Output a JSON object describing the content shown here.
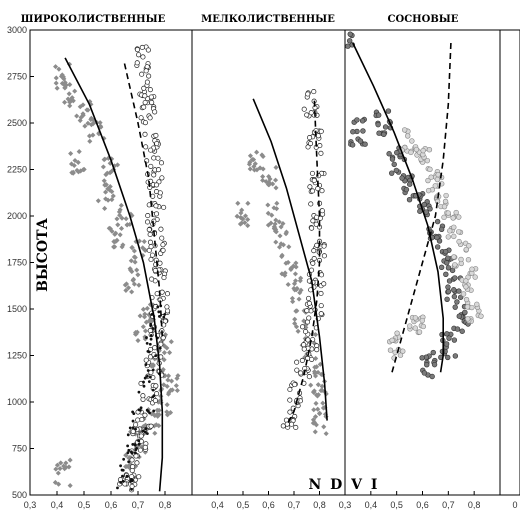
{
  "chart_data": {
    "type": "scatter",
    "ylabel": "ВЫСОТА",
    "xlabel": "N D V I",
    "ylim": [
      500,
      3000
    ],
    "yticks": [
      "500",
      "750",
      "1000",
      "1250",
      "1500",
      "1750",
      "2000",
      "2250",
      "2500",
      "2750",
      "3000"
    ],
    "grid": false,
    "panels": [
      {
        "title": "ШИРОКОЛИСТВЕННЫЕ",
        "xlim": [
          0.3,
          0.9
        ],
        "xticks": [
          "0,3",
          "0,4",
          "0,5",
          "0,6",
          "0,7",
          "0,8"
        ],
        "series": [
          {
            "marker": "filled-gray-diamond",
            "points": [
              [
                0.42,
                2750
              ],
              [
                0.45,
                2650
              ],
              [
                0.5,
                2550
              ],
              [
                0.55,
                2450
              ],
              [
                0.48,
                2300
              ],
              [
                0.6,
                2250
              ],
              [
                0.58,
                2100
              ],
              [
                0.65,
                2000
              ],
              [
                0.62,
                1900
              ],
              [
                0.7,
                1800
              ],
              [
                0.68,
                1650
              ],
              [
                0.75,
                1500
              ],
              [
                0.72,
                1400
              ],
              [
                0.8,
                1300
              ],
              [
                0.78,
                1200
              ],
              [
                0.82,
                1100
              ],
              [
                0.8,
                1000
              ],
              [
                0.75,
                900
              ],
              [
                0.7,
                800
              ],
              [
                0.68,
                700
              ],
              [
                0.42,
                620
              ]
            ]
          },
          {
            "marker": "open-circle",
            "points": [
              [
                0.72,
                2850
              ],
              [
                0.73,
                2700
              ],
              [
                0.74,
                2550
              ],
              [
                0.75,
                2400
              ],
              [
                0.76,
                2250
              ],
              [
                0.77,
                2100
              ],
              [
                0.76,
                1950
              ],
              [
                0.77,
                1800
              ],
              [
                0.78,
                1650
              ],
              [
                0.78,
                1500
              ],
              [
                0.77,
                1350
              ],
              [
                0.76,
                1200
              ],
              [
                0.74,
                1050
              ],
              [
                0.72,
                900
              ],
              [
                0.7,
                780
              ],
              [
                0.68,
                650
              ],
              [
                0.66,
                540
              ]
            ]
          },
          {
            "marker": "small-black",
            "points": [
              [
                0.77,
                1450
              ],
              [
                0.76,
                1300
              ],
              [
                0.75,
                1150
              ],
              [
                0.73,
                1000
              ],
              [
                0.71,
                900
              ],
              [
                0.69,
                800
              ],
              [
                0.67,
                700
              ],
              [
                0.65,
                600
              ]
            ]
          }
        ],
        "trend_solid": [
          [
            0.43,
            2850
          ],
          [
            0.52,
            2600
          ],
          [
            0.6,
            2300
          ],
          [
            0.67,
            2000
          ],
          [
            0.72,
            1750
          ],
          [
            0.76,
            1450
          ],
          [
            0.78,
            1200
          ],
          [
            0.79,
            950
          ],
          [
            0.79,
            700
          ],
          [
            0.78,
            520
          ]
        ],
        "trend_dashed": [
          [
            0.65,
            2820
          ],
          [
            0.7,
            2500
          ],
          [
            0.74,
            2200
          ],
          [
            0.76,
            1900
          ],
          [
            0.78,
            1600
          ],
          [
            0.79,
            1350
          ]
        ]
      },
      {
        "title": "МЕЛКОЛИСТВЕННЫЕ",
        "xlim": [
          0.3,
          0.9
        ],
        "xticks": [
          "0,4",
          "0,5",
          "0,6",
          "0,7",
          "0,8"
        ],
        "series": [
          {
            "marker": "filled-gray-diamond",
            "points": [
              [
                0.5,
                2000
              ],
              [
                0.55,
                2300
              ],
              [
                0.6,
                2200
              ],
              [
                0.62,
                2000
              ],
              [
                0.65,
                1900
              ],
              [
                0.68,
                1750
              ],
              [
                0.7,
                1600
              ],
              [
                0.73,
                1450
              ],
              [
                0.76,
                1300
              ],
              [
                0.79,
                1150
              ],
              [
                0.8,
                1000
              ],
              [
                0.8,
                900
              ]
            ]
          },
          {
            "marker": "open-circle",
            "points": [
              [
                0.77,
                2600
              ],
              [
                0.78,
                2400
              ],
              [
                0.79,
                2200
              ],
              [
                0.79,
                2000
              ],
              [
                0.8,
                1800
              ],
              [
                0.79,
                1650
              ],
              [
                0.78,
                1500
              ],
              [
                0.76,
                1350
              ],
              [
                0.74,
                1200
              ],
              [
                0.71,
                1050
              ],
              [
                0.68,
                900
              ]
            ]
          }
        ],
        "trend_solid": [
          [
            0.54,
            2630
          ],
          [
            0.61,
            2400
          ],
          [
            0.67,
            2150
          ],
          [
            0.72,
            1900
          ],
          [
            0.77,
            1650
          ],
          [
            0.8,
            1350
          ],
          [
            0.82,
            1100
          ],
          [
            0.83,
            900
          ]
        ],
        "trend_dashed": [
          [
            0.78,
            2620
          ],
          [
            0.79,
            2300
          ],
          [
            0.8,
            2000
          ],
          [
            0.8,
            1750
          ],
          [
            0.79,
            1550
          ],
          [
            0.77,
            1350
          ],
          [
            0.74,
            1150
          ],
          [
            0.7,
            950
          ],
          [
            0.67,
            870
          ]
        ]
      },
      {
        "title": "СОСНОВЫЕ",
        "xlim": [
          0.3,
          0.9
        ],
        "xticks": [
          "0,3",
          "0,4",
          "0,5",
          "0,6",
          "0,7",
          "0,8"
        ],
        "series": [
          {
            "marker": "dark-gray-circle",
            "points": [
              [
                0.3,
                2930
              ],
              [
                0.35,
                2450
              ],
              [
                0.45,
                2500
              ],
              [
                0.5,
                2300
              ],
              [
                0.55,
                2150
              ],
              [
                0.6,
                2050
              ],
              [
                0.65,
                1900
              ],
              [
                0.7,
                1750
              ],
              [
                0.72,
                1600
              ],
              [
                0.75,
                1450
              ],
              [
                0.7,
                1300
              ],
              [
                0.62,
                1200
              ]
            ]
          },
          {
            "marker": "light-gray-circle",
            "points": [
              [
                0.55,
                2400
              ],
              [
                0.6,
                2300
              ],
              [
                0.65,
                2200
              ],
              [
                0.68,
                2050
              ],
              [
                0.72,
                1950
              ],
              [
                0.75,
                1800
              ],
              [
                0.78,
                1650
              ],
              [
                0.8,
                1500
              ],
              [
                0.58,
                1400
              ],
              [
                0.5,
                1300
              ]
            ]
          }
        ],
        "trend_solid": [
          [
            0.33,
            2930
          ],
          [
            0.41,
            2700
          ],
          [
            0.49,
            2450
          ],
          [
            0.56,
            2200
          ],
          [
            0.62,
            1950
          ],
          [
            0.66,
            1700
          ],
          [
            0.68,
            1450
          ],
          [
            0.68,
            1250
          ],
          [
            0.67,
            1160
          ]
        ],
        "trend_dashed": [
          [
            0.71,
            2930
          ],
          [
            0.7,
            2600
          ],
          [
            0.68,
            2300
          ],
          [
            0.65,
            2000
          ],
          [
            0.6,
            1750
          ],
          [
            0.55,
            1500
          ],
          [
            0.51,
            1300
          ],
          [
            0.48,
            1150
          ]
        ]
      }
    ],
    "trailing_panel_xtick": "0"
  }
}
